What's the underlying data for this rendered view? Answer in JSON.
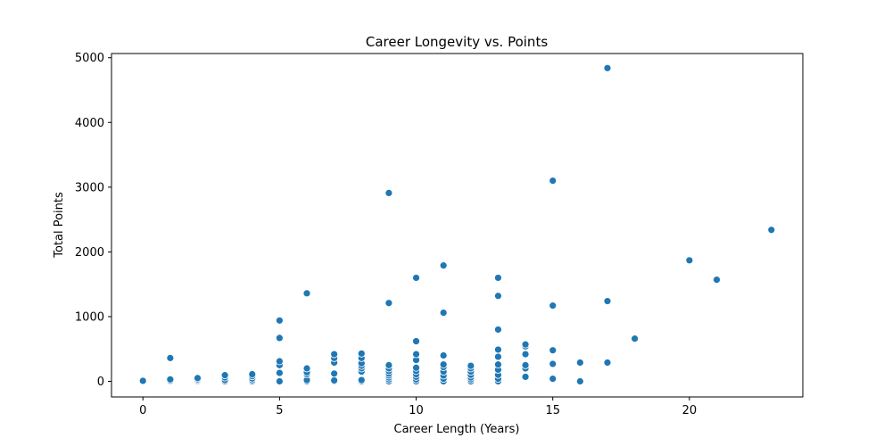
{
  "chart_data": {
    "type": "scatter",
    "title": "Career Longevity vs. Points",
    "xlabel": "Career Length (Years)",
    "ylabel": "Total Points",
    "xlim": [
      -1.15,
      24.15
    ],
    "ylim": [
      -241,
      5065
    ],
    "xticks": [
      0,
      5,
      10,
      15,
      20
    ],
    "yticks": [
      0,
      1000,
      2000,
      3000,
      4000,
      5000
    ],
    "grid": false,
    "legend": "none",
    "marker_color": "#1f77b4",
    "points": [
      {
        "x": 0,
        "y": 0
      },
      {
        "x": 0,
        "y": 8
      },
      {
        "x": 1,
        "y": 0
      },
      {
        "x": 1,
        "y": 10
      },
      {
        "x": 1,
        "y": 30
      },
      {
        "x": 1,
        "y": 360
      },
      {
        "x": 2,
        "y": 0
      },
      {
        "x": 2,
        "y": 15
      },
      {
        "x": 2,
        "y": 30
      },
      {
        "x": 2,
        "y": 50
      },
      {
        "x": 3,
        "y": 0
      },
      {
        "x": 3,
        "y": 20
      },
      {
        "x": 3,
        "y": 60
      },
      {
        "x": 3,
        "y": 95
      },
      {
        "x": 4,
        "y": 0
      },
      {
        "x": 4,
        "y": 20
      },
      {
        "x": 4,
        "y": 45
      },
      {
        "x": 4,
        "y": 80
      },
      {
        "x": 4,
        "y": 110
      },
      {
        "x": 5,
        "y": 0
      },
      {
        "x": 5,
        "y": 130
      },
      {
        "x": 5,
        "y": 250
      },
      {
        "x": 5,
        "y": 310
      },
      {
        "x": 5,
        "y": 670
      },
      {
        "x": 5,
        "y": 940
      },
      {
        "x": 6,
        "y": 0
      },
      {
        "x": 6,
        "y": 20
      },
      {
        "x": 6,
        "y": 110
      },
      {
        "x": 6,
        "y": 140
      },
      {
        "x": 6,
        "y": 200
      },
      {
        "x": 6,
        "y": 1360
      },
      {
        "x": 7,
        "y": 0
      },
      {
        "x": 7,
        "y": 15
      },
      {
        "x": 7,
        "y": 120
      },
      {
        "x": 7,
        "y": 290
      },
      {
        "x": 7,
        "y": 360
      },
      {
        "x": 7,
        "y": 420
      },
      {
        "x": 8,
        "y": 0
      },
      {
        "x": 8,
        "y": 20
      },
      {
        "x": 8,
        "y": 150
      },
      {
        "x": 8,
        "y": 200
      },
      {
        "x": 8,
        "y": 240
      },
      {
        "x": 8,
        "y": 280
      },
      {
        "x": 8,
        "y": 360
      },
      {
        "x": 8,
        "y": 430
      },
      {
        "x": 9,
        "y": 0
      },
      {
        "x": 9,
        "y": 30
      },
      {
        "x": 9,
        "y": 60
      },
      {
        "x": 9,
        "y": 90
      },
      {
        "x": 9,
        "y": 120
      },
      {
        "x": 9,
        "y": 160
      },
      {
        "x": 9,
        "y": 200
      },
      {
        "x": 9,
        "y": 250
      },
      {
        "x": 9,
        "y": 1210
      },
      {
        "x": 9,
        "y": 2910
      },
      {
        "x": 10,
        "y": 0
      },
      {
        "x": 10,
        "y": 30
      },
      {
        "x": 10,
        "y": 70
      },
      {
        "x": 10,
        "y": 110
      },
      {
        "x": 10,
        "y": 160
      },
      {
        "x": 10,
        "y": 210
      },
      {
        "x": 10,
        "y": 330
      },
      {
        "x": 10,
        "y": 420
      },
      {
        "x": 10,
        "y": 620
      },
      {
        "x": 10,
        "y": 1600
      },
      {
        "x": 11,
        "y": 0
      },
      {
        "x": 11,
        "y": 40
      },
      {
        "x": 11,
        "y": 90
      },
      {
        "x": 11,
        "y": 150
      },
      {
        "x": 11,
        "y": 220
      },
      {
        "x": 11,
        "y": 260
      },
      {
        "x": 11,
        "y": 400
      },
      {
        "x": 11,
        "y": 1060
      },
      {
        "x": 11,
        "y": 1790
      },
      {
        "x": 12,
        "y": 0
      },
      {
        "x": 12,
        "y": 30
      },
      {
        "x": 12,
        "y": 60
      },
      {
        "x": 12,
        "y": 100
      },
      {
        "x": 12,
        "y": 150
      },
      {
        "x": 12,
        "y": 200
      },
      {
        "x": 12,
        "y": 240
      },
      {
        "x": 13,
        "y": 0
      },
      {
        "x": 13,
        "y": 40
      },
      {
        "x": 13,
        "y": 100
      },
      {
        "x": 13,
        "y": 180
      },
      {
        "x": 13,
        "y": 260
      },
      {
        "x": 13,
        "y": 380
      },
      {
        "x": 13,
        "y": 490
      },
      {
        "x": 13,
        "y": 800
      },
      {
        "x": 13,
        "y": 1320
      },
      {
        "x": 13,
        "y": 1600
      },
      {
        "x": 14,
        "y": 70
      },
      {
        "x": 14,
        "y": 200
      },
      {
        "x": 14,
        "y": 250
      },
      {
        "x": 14,
        "y": 420
      },
      {
        "x": 14,
        "y": 540
      },
      {
        "x": 14,
        "y": 570
      },
      {
        "x": 15,
        "y": 40
      },
      {
        "x": 15,
        "y": 270
      },
      {
        "x": 15,
        "y": 480
      },
      {
        "x": 15,
        "y": 1170
      },
      {
        "x": 15,
        "y": 3100
      },
      {
        "x": 16,
        "y": 0
      },
      {
        "x": 16,
        "y": 290
      },
      {
        "x": 17,
        "y": 290
      },
      {
        "x": 17,
        "y": 1240
      },
      {
        "x": 17,
        "y": 4840
      },
      {
        "x": 18,
        "y": 660
      },
      {
        "x": 20,
        "y": 1870
      },
      {
        "x": 21,
        "y": 1570
      },
      {
        "x": 23,
        "y": 2340
      }
    ]
  }
}
